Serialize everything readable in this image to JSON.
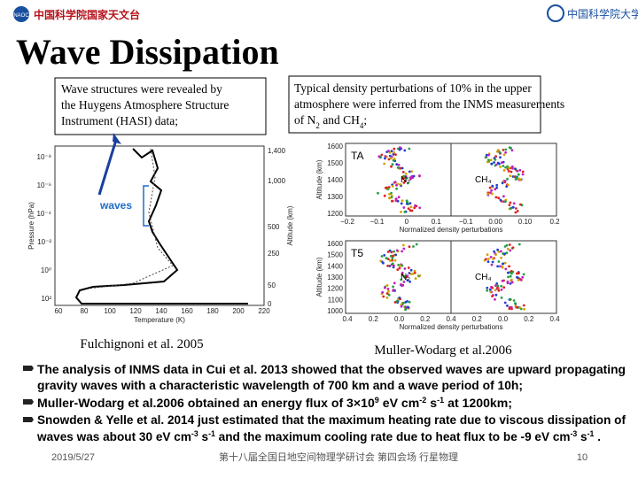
{
  "header": {
    "title": "Wave Dissipation",
    "logo_left": "中国科学院国家天文台",
    "logo_left_abbr": "NAOC",
    "logo_right": "中国科学院大学"
  },
  "left_box": {
    "lines": [
      "Wave structures were revealed by",
      "the Huygens Atmosphere Structure",
      "Instrument (HASI) data;"
    ]
  },
  "right_box": {
    "lines": [
      [
        [
          "Typical density perturbations of 10% in the upper",
          "n"
        ]
      ],
      [
        [
          "atmosphere were inferred from the INMS measurements",
          "n"
        ]
      ],
      [
        [
          "of N",
          "n"
        ],
        [
          "2",
          "sub"
        ],
        [
          " and CH",
          "n"
        ],
        [
          "4",
          "sub"
        ],
        [
          ";",
          "n"
        ]
      ]
    ]
  },
  "left_plot": {
    "pressure_ticks": [
      "10⁻⁸",
      "10⁻⁶",
      "10⁻⁴",
      "10⁻²",
      "10⁰",
      "10²"
    ],
    "altitude_ticks": [
      "1,400",
      "1,000",
      "500",
      "250",
      "50",
      "0"
    ],
    "temperature_ticks": [
      "60",
      "80",
      "100",
      "120",
      "140",
      "160",
      "180",
      "200",
      "220"
    ],
    "y_label": "Pressure (hPa)",
    "y2_label": "Altitude (km)",
    "x_label": "Temperature (K)",
    "annotation": "waves"
  },
  "right_plot_top": {
    "label": "TA",
    "species": [
      "N₂",
      "CH₄"
    ],
    "y_ticks": [
      "1600",
      "1500",
      "1400",
      "1300",
      "1200"
    ],
    "x_ticks": [
      "−0.2",
      "−0.1",
      "0",
      "0.1",
      "−0.1",
      "0.00",
      "0.10",
      "0.2"
    ],
    "y_label": "Altitude (km)",
    "x_label": "Normalized density perturbations"
  },
  "right_plot_bottom": {
    "label": "T5",
    "species": [
      "N₂",
      "CH₄"
    ],
    "y_ticks": [
      "1600",
      "1500",
      "1400",
      "1300",
      "1200",
      "1100",
      "1000"
    ],
    "x_ticks": [
      "0.4",
      "0.2",
      "0.0",
      "0.2",
      "0.4",
      "0.2",
      "0.0",
      "0.2",
      "0.4"
    ],
    "y_label": "Altitude (km)",
    "x_label": "Normalized density perturbations"
  },
  "captions": [
    "Fulchignoni et al. 2005",
    "Muller-Wodarg et al.2006"
  ],
  "bullets": [
    {
      "lines": [
        [
          [
            "The analysis of INMS data in Cui et al. 2013 showed that the observed waves are upward propagating",
            "n"
          ]
        ],
        [
          [
            "gravity waves with a characteristic wavelength of 700 km and a wave period of 10h;",
            "n"
          ]
        ]
      ]
    },
    {
      "lines": [
        [
          [
            "Muller-Wodarg et al.2006 obtained an energy flux of 3×10",
            "n"
          ],
          [
            "9",
            "sup"
          ],
          [
            " eV cm",
            "n"
          ],
          [
            "-2",
            "sup"
          ],
          [
            " s",
            "n"
          ],
          [
            "-1",
            "sup"
          ],
          [
            " at 1200km;",
            "n"
          ]
        ]
      ]
    },
    {
      "lines": [
        [
          [
            "Snowden & Yelle et al. 2014 just estimated that the maximum heating rate due to viscous dissipation of",
            "n"
          ]
        ],
        [
          [
            "waves was about 30 eV cm",
            "n"
          ],
          [
            "-3",
            "sup"
          ],
          [
            " s",
            "n"
          ],
          [
            "-1",
            "sup"
          ],
          [
            " and the maximum cooling rate due to heat flux to be -9 eV cm",
            "n"
          ],
          [
            "-3",
            "sup"
          ],
          [
            " s",
            "n"
          ],
          [
            "-1",
            "sup"
          ],
          [
            " .",
            "n"
          ]
        ]
      ]
    }
  ],
  "footer": {
    "date": "2019/5/27",
    "meeting": "第十八届全国日地空间物理学研讨会  第四会场  行星物理",
    "page": "10"
  }
}
